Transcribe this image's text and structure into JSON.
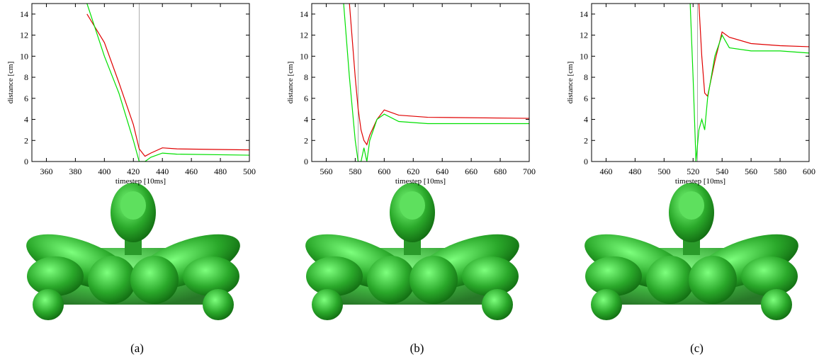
{
  "chart_data": [
    {
      "type": "line",
      "xlabel": "timestep [10ms]",
      "ylabel": "distance [cm]",
      "x": [
        388,
        400,
        410,
        420,
        424,
        428,
        432,
        440,
        450,
        500
      ],
      "series": [
        {
          "color": "#e00000",
          "values": [
            14,
            11.3,
            7.5,
            3.5,
            1.2,
            0.5,
            0.8,
            1.3,
            1.2,
            1.1
          ]
        },
        {
          "color": "#00e000",
          "values": [
            15,
            10,
            6.5,
            2,
            0,
            0,
            0.4,
            0.8,
            0.7,
            0.6
          ]
        }
      ],
      "vline": 424,
      "xlim": [
        350,
        500
      ],
      "xticks": [
        360,
        380,
        400,
        420,
        440,
        460,
        480,
        500
      ],
      "ylim": [
        0,
        15
      ],
      "yticks": [
        0,
        2,
        4,
        6,
        8,
        10,
        12,
        14
      ]
    },
    {
      "type": "line",
      "xlabel": "timestep [10ms]",
      "ylabel": "distance [cm]",
      "x": [
        572,
        576,
        580,
        582,
        584,
        586,
        588,
        590,
        595,
        600,
        610,
        630,
        700
      ],
      "series": [
        {
          "color": "#e00000",
          "values": [
            null,
            15,
            8,
            5,
            3,
            2,
            1.6,
            2.5,
            4,
            4.9,
            4.4,
            4.2,
            4.1
          ]
        },
        {
          "color": "#00e000",
          "values": [
            15,
            8,
            2,
            0,
            0,
            1.3,
            0,
            2,
            4,
            4.5,
            3.8,
            3.6,
            3.6
          ]
        }
      ],
      "vline": 582,
      "xlim": [
        550,
        700
      ],
      "xticks": [
        560,
        580,
        600,
        620,
        640,
        660,
        680,
        700
      ],
      "ylim": [
        0,
        15
      ],
      "yticks": [
        0,
        2,
        4,
        6,
        8,
        10,
        12,
        14
      ]
    },
    {
      "type": "line",
      "xlabel": "timestep [10ms]",
      "ylabel": "distance [cm]",
      "x": [
        518,
        520,
        522,
        524,
        526,
        528,
        530,
        535,
        540,
        545,
        560,
        580,
        600
      ],
      "series": [
        {
          "color": "#e00000",
          "values": [
            null,
            null,
            null,
            15,
            10,
            6.5,
            6.2,
            9.5,
            12.3,
            11.8,
            11.2,
            11,
            10.9
          ]
        },
        {
          "color": "#00e000",
          "values": [
            15,
            8,
            0,
            3,
            4,
            3,
            6,
            10,
            12,
            10.8,
            10.5,
            10.5,
            10.3
          ]
        }
      ],
      "vline": 523,
      "xlim": [
        450,
        600
      ],
      "xticks": [
        460,
        480,
        500,
        520,
        540,
        560,
        580,
        600
      ],
      "ylim": [
        0,
        15
      ],
      "yticks": [
        0,
        2,
        4,
        6,
        8,
        10,
        12,
        14
      ]
    }
  ],
  "captions": [
    "(a)",
    "(b)",
    "(c)"
  ]
}
